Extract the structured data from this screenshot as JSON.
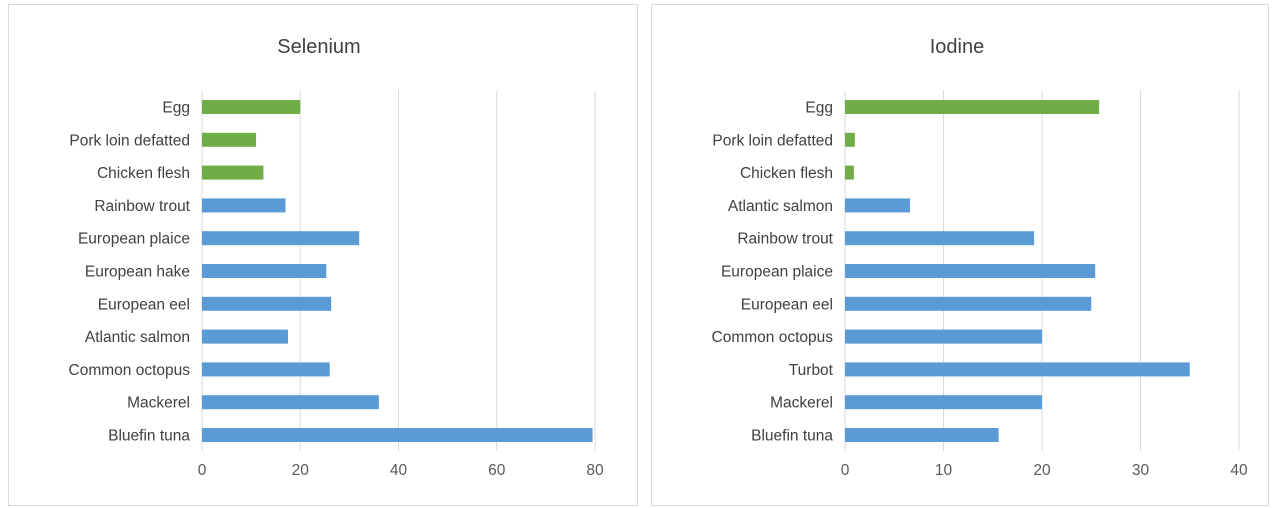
{
  "chart_data": [
    {
      "type": "bar",
      "orientation": "horizontal",
      "title": "Selenium",
      "categories": [
        "Egg",
        "Pork loin defatted",
        "Chicken flesh",
        "Rainbow trout",
        "European plaice",
        "European hake",
        "European eel",
        "Atlantic salmon",
        "Common octopus",
        "Mackerel",
        "Bluefin tuna"
      ],
      "values": [
        20,
        11,
        12.5,
        17,
        32,
        25.3,
        26.3,
        17.5,
        26,
        36,
        79.5
      ],
      "bar_colors": [
        "#70ad47",
        "#70ad47",
        "#70ad47",
        "#5b9bd5",
        "#5b9bd5",
        "#5b9bd5",
        "#5b9bd5",
        "#5b9bd5",
        "#5b9bd5",
        "#5b9bd5",
        "#5b9bd5"
      ],
      "xlim": [
        0,
        80
      ],
      "xticks": [
        "0",
        "20",
        "40",
        "60",
        "80"
      ],
      "grid": true
    },
    {
      "type": "bar",
      "orientation": "horizontal",
      "title": "Iodine",
      "categories": [
        "Egg",
        "Pork loin defatted",
        "Chicken flesh",
        "Atlantic salmon",
        "Rainbow trout",
        "European plaice",
        "European eel",
        "Common octopus",
        "Turbot",
        "Mackerel",
        "Bluefin tuna"
      ],
      "values": [
        25.8,
        1,
        0.9,
        6.6,
        19.2,
        25.4,
        25,
        20,
        35,
        20,
        15.6
      ],
      "bar_colors": [
        "#70ad47",
        "#70ad47",
        "#70ad47",
        "#5b9bd5",
        "#5b9bd5",
        "#5b9bd5",
        "#5b9bd5",
        "#5b9bd5",
        "#5b9bd5",
        "#5b9bd5",
        "#5b9bd5"
      ],
      "xlim": [
        0,
        40
      ],
      "xticks": [
        "0",
        "10",
        "20",
        "30",
        "40"
      ],
      "grid": true
    }
  ]
}
